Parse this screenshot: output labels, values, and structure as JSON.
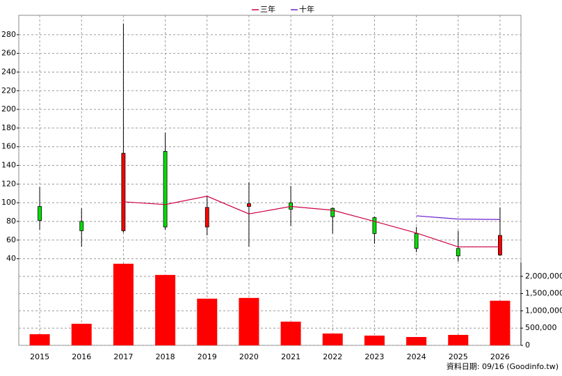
{
  "chart_data": {
    "type": "candlestick",
    "categories": [
      "2015",
      "2016",
      "2017",
      "2018",
      "2019",
      "2020",
      "2021",
      "2022",
      "2023",
      "2024",
      "2025",
      "2026"
    ],
    "open": [
      96,
      80,
      70,
      155,
      74,
      96,
      100,
      94,
      84,
      67,
      51,
      44
    ],
    "high": [
      117,
      94,
      292,
      175,
      107,
      122,
      118,
      95,
      85,
      74,
      70,
      95
    ],
    "low": [
      71,
      53,
      68,
      71,
      65,
      53,
      75,
      67,
      56,
      47,
      37,
      43
    ],
    "close": [
      81,
      70,
      153,
      74,
      95,
      99,
      93,
      85,
      67,
      51,
      43,
      65
    ],
    "up_color": "#ff0000",
    "down_color": "#00e000",
    "ylim": [
      30,
      300
    ],
    "yticks": [
      40,
      60,
      80,
      100,
      120,
      140,
      160,
      180,
      200,
      220,
      240,
      260,
      280
    ],
    "series": [
      {
        "name": "三年",
        "color": "#cc0044",
        "values": [
          null,
          null,
          101,
          98,
          107,
          88,
          96,
          92,
          80,
          67.6,
          52.7,
          52.7
        ]
      },
      {
        "name": "十年",
        "color": "#6a1fd0",
        "values": [
          null,
          null,
          null,
          null,
          null,
          null,
          null,
          null,
          null,
          86,
          82.5,
          82
        ]
      }
    ],
    "volume": {
      "color": "#ff0000",
      "values": [
        323000,
        626000,
        2364000,
        2040000,
        1353000,
        1374000,
        687000,
        343000,
        283000,
        242000,
        303000,
        1293000
      ],
      "ylim": [
        0,
        2400000
      ],
      "yticks": [
        0,
        {
          "value": 500000,
          "label": "500,000"
        },
        {
          "value": 1000000,
          "label": "1,000,000"
        },
        {
          "value": 1500000,
          "label": "1,500,000"
        },
        {
          "value": 2000000,
          "label": "2,000,000"
        }
      ]
    },
    "grid": true,
    "legend": "top",
    "source": "資料日期: 09/16  (Goodinfo.tw)"
  }
}
